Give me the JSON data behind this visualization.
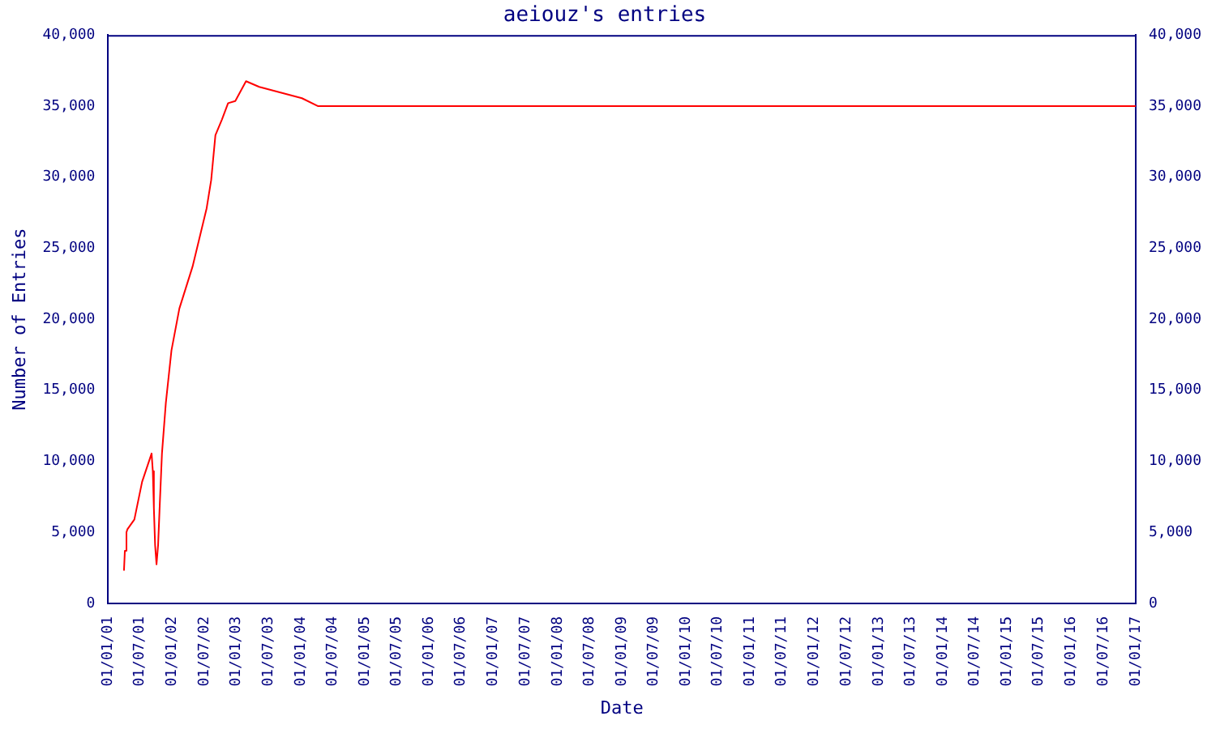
{
  "chart_data": {
    "type": "line",
    "title": "aeiouz's entries",
    "xlabel": "Date",
    "ylabel": "Number of Entries",
    "x": [
      "2001-04-01",
      "2001-04-06",
      "2001-04-15",
      "2001-04-20",
      "2001-05-30",
      "2001-07-13",
      "2001-09-05",
      "2001-09-12",
      "2001-09-18",
      "2001-09-25",
      "2001-10-03",
      "2001-10-12",
      "2001-10-20",
      "2001-11-03",
      "2001-11-25",
      "2001-12-27",
      "2002-02-10",
      "2002-04-26",
      "2002-07-15",
      "2002-08-10",
      "2002-09-03",
      "2002-10-10",
      "2002-11-14",
      "2002-12-25",
      "2003-02-24",
      "2003-05-10",
      "2004-01-08",
      "2004-04-07",
      "2017-01-01"
    ],
    "series": [
      {
        "color": "#ff0000",
        "values": [
          2300,
          3700,
          5000,
          5200,
          5900,
          8550,
          10550,
          9300,
          6700,
          4100,
          2750,
          4100,
          6500,
          10550,
          14100,
          17800,
          20750,
          23700,
          27800,
          29800,
          32950,
          34050,
          35200,
          35350,
          36750,
          36350,
          35550,
          35000,
          35000
        ]
      }
    ],
    "xlim": [
      "2001-01-01",
      "2017-01-01"
    ],
    "xticks": [
      {
        "value": "2001-01-01",
        "label": "01/01/01"
      },
      {
        "value": "2001-07-01",
        "label": "01/07/01"
      },
      {
        "value": "2002-01-01",
        "label": "01/01/02"
      },
      {
        "value": "2002-07-01",
        "label": "01/07/02"
      },
      {
        "value": "2003-01-01",
        "label": "01/01/03"
      },
      {
        "value": "2003-07-01",
        "label": "01/07/03"
      },
      {
        "value": "2004-01-01",
        "label": "01/01/04"
      },
      {
        "value": "2004-07-01",
        "label": "01/07/04"
      },
      {
        "value": "2005-01-01",
        "label": "01/01/05"
      },
      {
        "value": "2005-07-01",
        "label": "01/07/05"
      },
      {
        "value": "2006-01-01",
        "label": "01/01/06"
      },
      {
        "value": "2006-07-01",
        "label": "01/07/06"
      },
      {
        "value": "2007-01-01",
        "label": "01/01/07"
      },
      {
        "value": "2007-07-01",
        "label": "01/07/07"
      },
      {
        "value": "2008-01-01",
        "label": "01/01/08"
      },
      {
        "value": "2008-07-01",
        "label": "01/07/08"
      },
      {
        "value": "2009-01-01",
        "label": "01/01/09"
      },
      {
        "value": "2009-07-01",
        "label": "01/07/09"
      },
      {
        "value": "2010-01-01",
        "label": "01/01/10"
      },
      {
        "value": "2010-07-01",
        "label": "01/07/10"
      },
      {
        "value": "2011-01-01",
        "label": "01/01/11"
      },
      {
        "value": "2011-07-01",
        "label": "01/07/11"
      },
      {
        "value": "2012-01-01",
        "label": "01/01/12"
      },
      {
        "value": "2012-07-01",
        "label": "01/07/12"
      },
      {
        "value": "2013-01-01",
        "label": "01/01/13"
      },
      {
        "value": "2013-07-01",
        "label": "01/07/13"
      },
      {
        "value": "2014-01-01",
        "label": "01/01/14"
      },
      {
        "value": "2014-07-01",
        "label": "01/07/14"
      },
      {
        "value": "2015-01-01",
        "label": "01/01/15"
      },
      {
        "value": "2015-07-01",
        "label": "01/07/15"
      },
      {
        "value": "2016-01-01",
        "label": "01/01/16"
      },
      {
        "value": "2016-07-01",
        "label": "01/07/16"
      },
      {
        "value": "2017-01-01",
        "label": "01/01/17"
      }
    ],
    "ylim": [
      0,
      40000
    ],
    "yticks": [
      0,
      {
        "value": 5000,
        "label": "5,000"
      },
      {
        "value": 10000,
        "label": "10,000"
      },
      {
        "value": 15000,
        "label": "15,000"
      },
      {
        "value": 20000,
        "label": "20,000"
      },
      {
        "value": 25000,
        "label": "25,000"
      },
      {
        "value": 30000,
        "label": "30,000"
      },
      {
        "value": 35000,
        "label": "35,000"
      },
      {
        "value": 40000,
        "label": "40,000"
      }
    ],
    "y2lim": [
      0,
      40000
    ],
    "y2ticks": [
      0,
      {
        "value": 5000,
        "label": "5,000"
      },
      {
        "value": 10000,
        "label": "10,000"
      },
      {
        "value": 15000,
        "label": "15,000"
      },
      {
        "value": 20000,
        "label": "20,000"
      },
      {
        "value": 25000,
        "label": "25,000"
      },
      {
        "value": 30000,
        "label": "30,000"
      },
      {
        "value": 35000,
        "label": "35,000"
      },
      {
        "value": 40000,
        "label": "40,000"
      }
    ],
    "grid": false,
    "legend": false,
    "marker": "none",
    "line_style": "solid"
  }
}
